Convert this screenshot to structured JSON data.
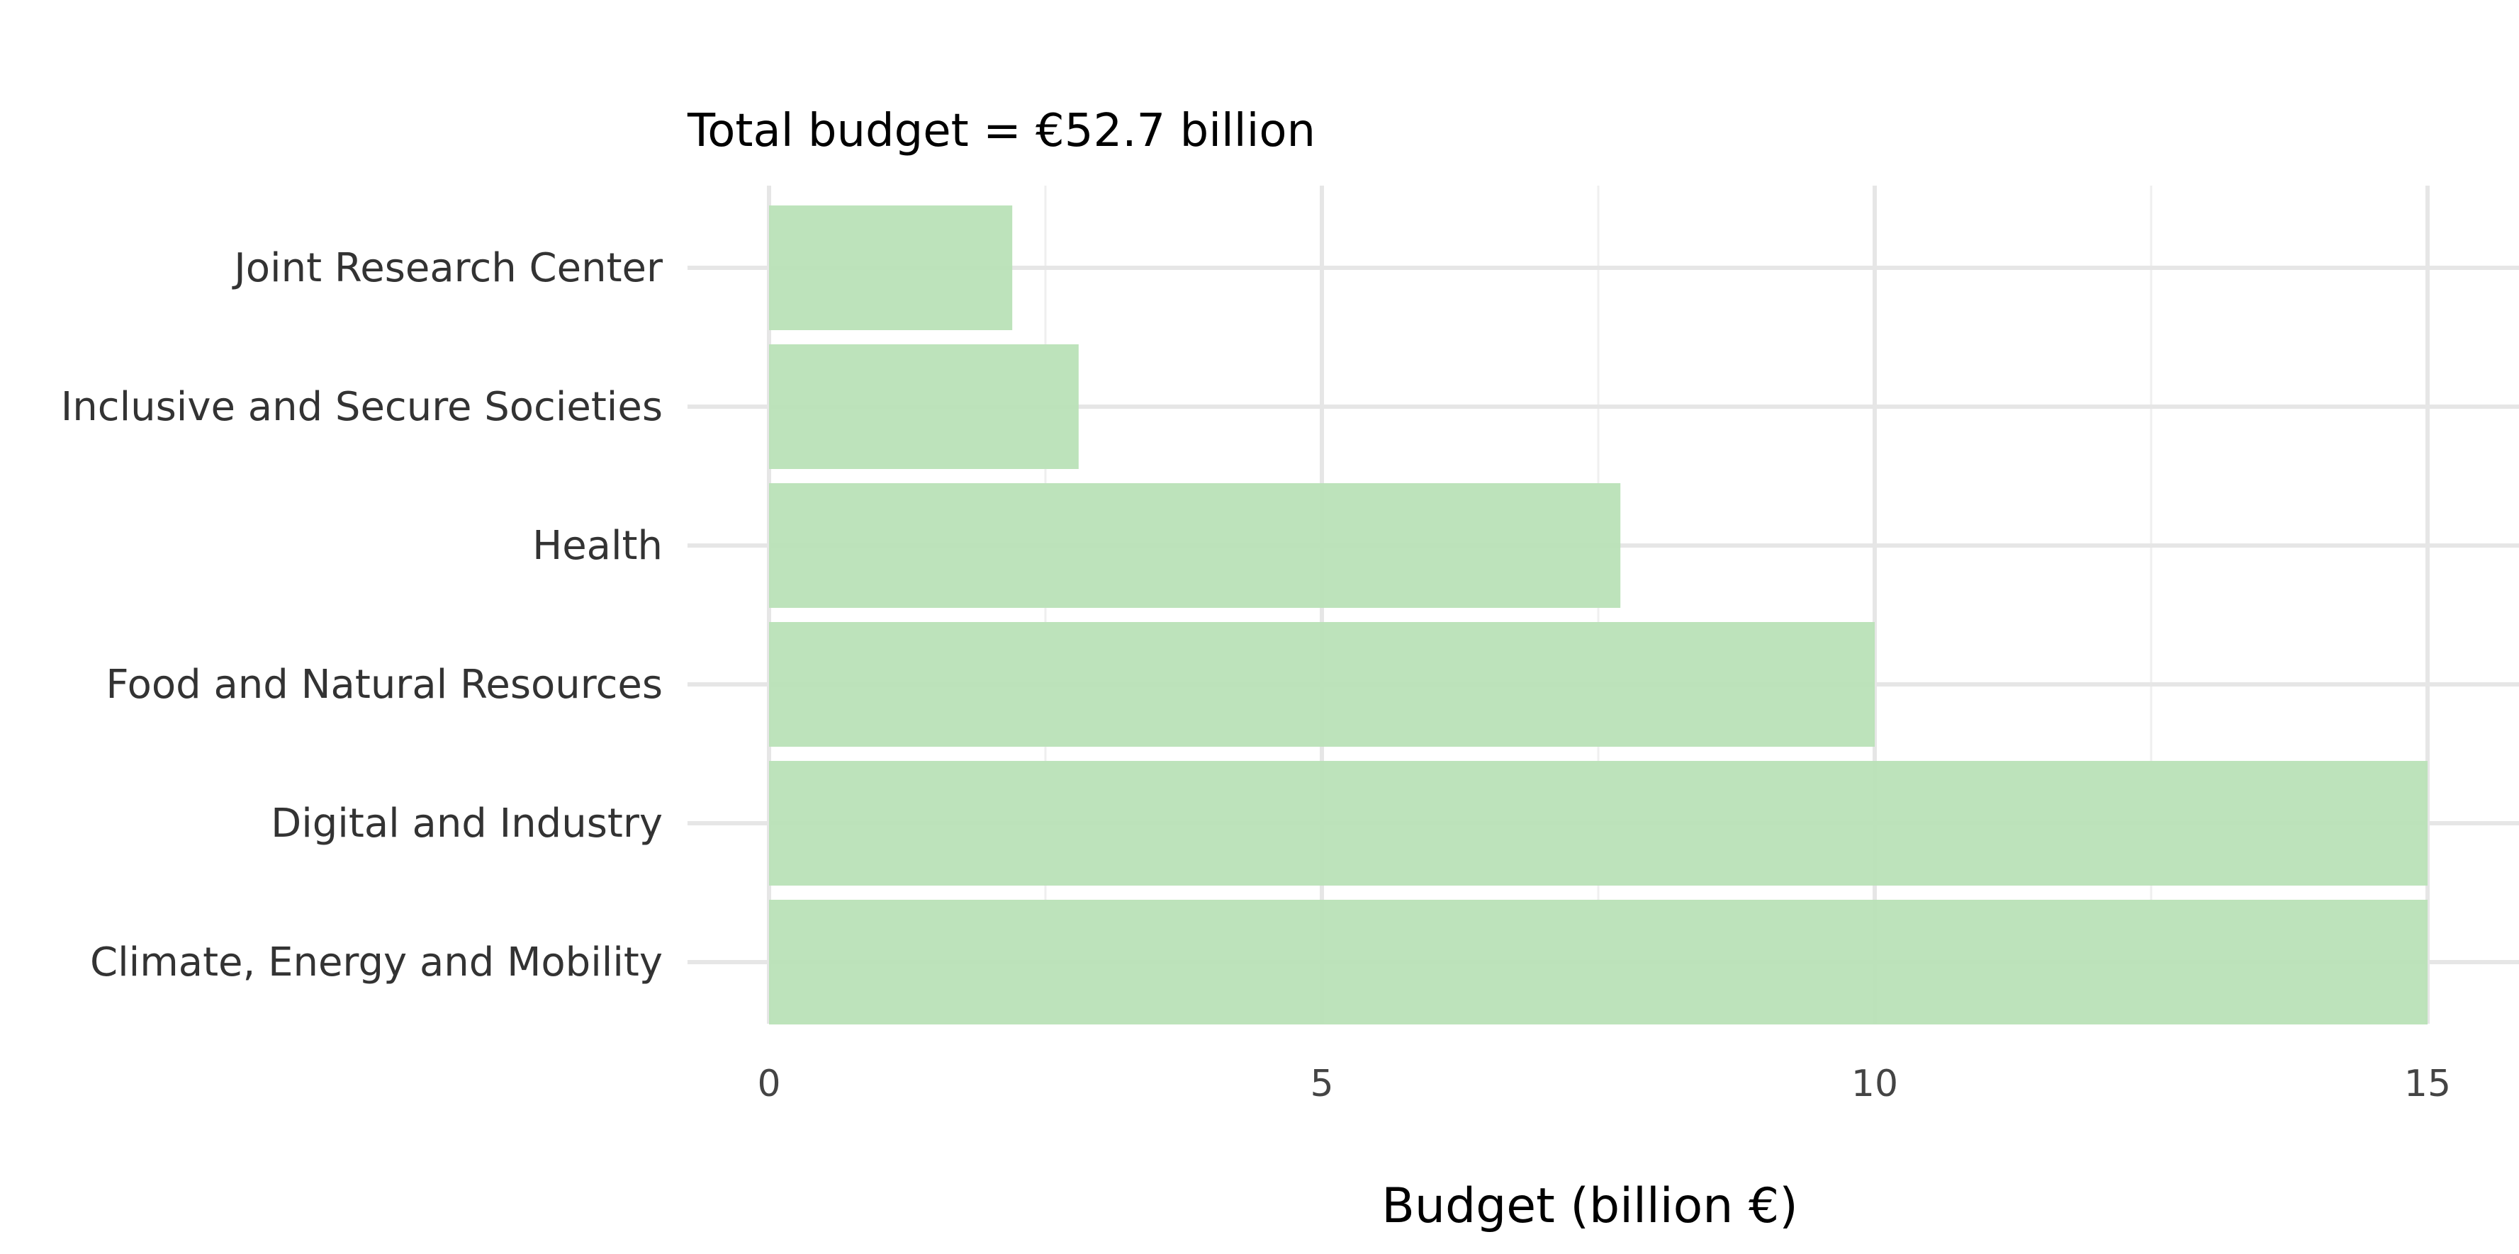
{
  "chart_data": {
    "type": "bar",
    "orientation": "horizontal",
    "title": "Total budget = €52.7 billion",
    "xlabel": "Budget (billion €)",
    "ylabel": "",
    "categories": [
      "Joint Research Center",
      "Inclusive and Secure Societies",
      "Health",
      "Food and Natural Resources",
      "Digital and Industry",
      "Climate, Energy and Mobility"
    ],
    "values": [
      2.2,
      2.8,
      7.7,
      10.0,
      15.0,
      15.0
    ],
    "xlim": [
      0,
      15
    ],
    "xticks": [
      0,
      5,
      10,
      15
    ],
    "xtick_labels": [
      "0",
      "5",
      "10",
      "15"
    ],
    "grid": true,
    "legend": "none",
    "colors": {
      "bar": "#b9e2b7",
      "grid_major": "#e6e6e6",
      "grid_minor": "#efefef",
      "text": "#333333"
    }
  }
}
